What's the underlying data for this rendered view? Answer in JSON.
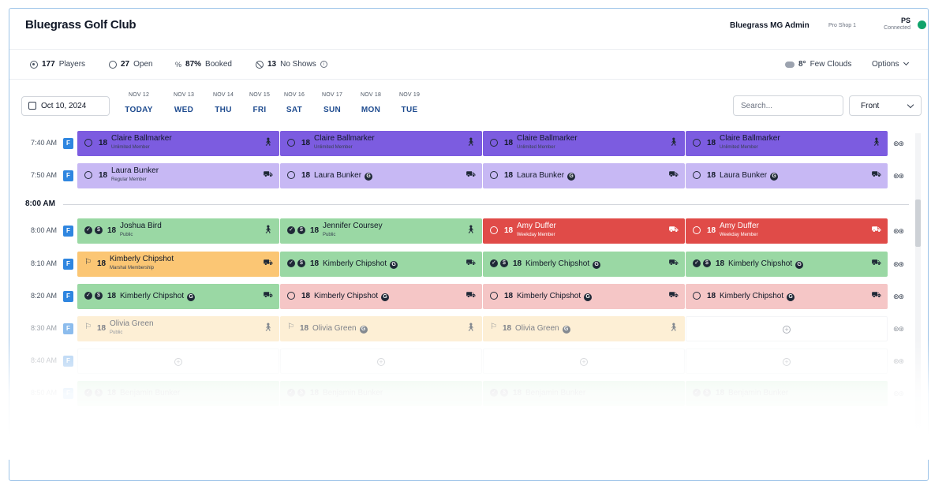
{
  "header": {
    "club_name": "Bluegrass Golf Club",
    "admin_name": "Bluegrass MG Admin",
    "shop_name": "Pro Shop 1",
    "user_initials": "PS",
    "connection_status": "Connected",
    "status_color": "#10a36b"
  },
  "stats": {
    "players_count": "177",
    "players_label": "Players",
    "open_count": "27",
    "open_label": "Open",
    "booked_pct": "87%",
    "booked_label": "Booked",
    "noshow_count": "13",
    "noshow_label": "No Shows",
    "weather_temp": "8°",
    "weather_desc": "Few Clouds",
    "options_label": "Options"
  },
  "datebar": {
    "selected_date": "Oct 10, 2024",
    "days": [
      {
        "date": "NOV 12",
        "label": "TODAY"
      },
      {
        "date": "NOV 13",
        "label": "WED"
      },
      {
        "date": "NOV 14",
        "label": "THU"
      },
      {
        "date": "NOV 15",
        "label": "FRI"
      },
      {
        "date": "NOV 16",
        "label": "SAT"
      },
      {
        "date": "NOV 17",
        "label": "SUN"
      },
      {
        "date": "NOV 18",
        "label": "MON"
      },
      {
        "date": "NOV 19",
        "label": "TUE"
      }
    ],
    "search_placeholder": "Search...",
    "tee_select": "Front"
  },
  "separator_label": "8:00 AM",
  "tee_sheet": [
    {
      "time": "7:40 AM",
      "side": "F",
      "slots": [
        {
          "color": "purple",
          "status": "open",
          "holes": "18",
          "name": "Claire Ballmarker",
          "sub": "Unlimited Member",
          "mode": "walk"
        },
        {
          "color": "purple",
          "status": "open",
          "holes": "18",
          "name": "Claire Ballmarker",
          "sub": "Unlimited Member",
          "mode": "walk"
        },
        {
          "color": "purple",
          "status": "open",
          "holes": "18",
          "name": "Claire Ballmarker",
          "sub": "Unlimited Member",
          "mode": "walk"
        },
        {
          "color": "purple",
          "status": "open",
          "holes": "18",
          "name": "Claire Ballmarker",
          "sub": "Unlimited Member",
          "mode": "walk"
        }
      ]
    },
    {
      "time": "7:50 AM",
      "side": "F",
      "slots": [
        {
          "color": "lpurple",
          "status": "open",
          "holes": "18",
          "name": "Laura Bunker",
          "sub": "Regular Member",
          "mode": "cart"
        },
        {
          "color": "lpurple",
          "status": "open",
          "holes": "18",
          "name": "Laura Bunker",
          "guest": "G",
          "mode": "cart"
        },
        {
          "color": "lpurple",
          "status": "open",
          "holes": "18",
          "name": "Laura Bunker",
          "guest": "G",
          "mode": "cart"
        },
        {
          "color": "lpurple",
          "status": "open",
          "holes": "18",
          "name": "Laura Bunker",
          "guest": "G",
          "mode": "cart"
        }
      ]
    },
    {
      "time": "8:00 AM",
      "side": "F",
      "slots": [
        {
          "color": "green",
          "status": "paid",
          "holes": "18",
          "name": "Joshua Bird",
          "sub": "Public",
          "mode": "walk"
        },
        {
          "color": "green",
          "status": "paid",
          "holes": "18",
          "name": "Jennifer Coursey",
          "sub": "Public",
          "mode": "walk"
        },
        {
          "color": "red",
          "status": "noshow",
          "holes": "18",
          "name": "Amy Duffer",
          "sub": "Weekday Member",
          "mode": "cart"
        },
        {
          "color": "red",
          "status": "noshow",
          "holes": "18",
          "name": "Amy Duffer",
          "sub": "Weekday Member",
          "mode": "cart"
        }
      ]
    },
    {
      "time": "8:10 AM",
      "side": "F",
      "slots": [
        {
          "color": "orange",
          "status": "marshal",
          "holes": "18",
          "name": "Kimberly Chipshot",
          "sub": "Marshal Membership",
          "mode": "cart"
        },
        {
          "color": "green",
          "status": "paid",
          "holes": "18",
          "name": "Kimberly Chipshot",
          "guest": "G",
          "mode": "cart"
        },
        {
          "color": "green",
          "status": "paid",
          "holes": "18",
          "name": "Kimberly Chipshot",
          "guest": "G",
          "mode": "cart"
        },
        {
          "color": "green",
          "status": "paid",
          "holes": "18",
          "name": "Kimberly Chipshot",
          "guest": "G",
          "mode": "cart"
        }
      ]
    },
    {
      "time": "8:20 AM",
      "side": "F",
      "slots": [
        {
          "color": "green",
          "status": "paid",
          "holes": "18",
          "name": "Kimberly Chipshot",
          "guest": "G",
          "mode": "cart"
        },
        {
          "color": "pink",
          "status": "open",
          "holes": "18",
          "name": "Kimberly Chipshot",
          "guest": "G",
          "mode": "cart"
        },
        {
          "color": "pink",
          "status": "open",
          "holes": "18",
          "name": "Kimberly Chipshot",
          "guest": "G",
          "mode": "cart"
        },
        {
          "color": "pink",
          "status": "open",
          "holes": "18",
          "name": "Kimberly Chipshot",
          "guest": "G",
          "mode": "cart"
        }
      ]
    },
    {
      "time": "8:30 AM",
      "side": "F",
      "slots": [
        {
          "color": "lorange",
          "status": "marshal",
          "holes": "18",
          "name": "Olivia Green",
          "sub": "Public",
          "mode": "walk"
        },
        {
          "color": "lorange",
          "status": "marshal",
          "holes": "18",
          "name": "Olivia Green",
          "guest": "G",
          "mode": "walk"
        },
        {
          "color": "lorange",
          "status": "marshal",
          "holes": "18",
          "name": "Olivia Green",
          "guest": "G",
          "mode": "walk"
        },
        {
          "color": "empty"
        }
      ]
    },
    {
      "time": "8:40 AM",
      "side": "F",
      "slots": [
        {
          "color": "empty"
        },
        {
          "color": "empty"
        },
        {
          "color": "empty"
        },
        {
          "color": "empty"
        }
      ]
    },
    {
      "time": "8:50 AM",
      "side": "F",
      "slots": [
        {
          "color": "green",
          "status": "paid",
          "holes": "18",
          "name": "Benjamin Bunker"
        },
        {
          "color": "green",
          "status": "paid",
          "holes": "18",
          "name": "Benjamin Bunker"
        },
        {
          "color": "green",
          "status": "paid",
          "holes": "18",
          "name": "Benjamin Bunker"
        },
        {
          "color": "green",
          "status": "paid",
          "holes": "18",
          "name": "Benjamin Bunker"
        }
      ]
    }
  ]
}
